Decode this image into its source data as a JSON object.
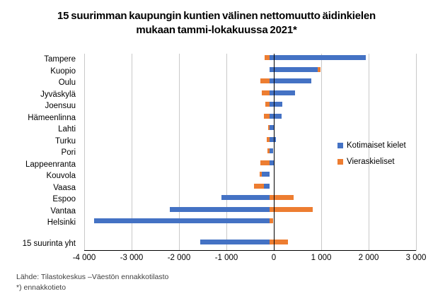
{
  "page": {
    "source_line": "Lähde: Tilastokeskus –Väestön ennakkotilasto",
    "footnote_line": "*) ennakkotieto"
  },
  "chart_data": {
    "type": "bar",
    "orientation": "horizontal",
    "stacked": true,
    "title": "15 suurimman kaupungin kuntien välinen nettomuutto äidinkielen mukaan tammi-lokakuussa 2021*",
    "categories": [
      "Tampere",
      "Kuopio",
      "Oulu",
      "Jyväskylä",
      "Joensuu",
      "Hämeenlinna",
      "Lahti",
      "Turku",
      "Pori",
      "Lappeenranta",
      "Kouvola",
      "Vaasa",
      "Espoo",
      "Vantaa",
      "Helsinki",
      "15 suurinta yht"
    ],
    "series": [
      {
        "name": "Kotimaiset kielet",
        "color": "#4472C4",
        "values": [
          2030,
          1020,
          880,
          530,
          265,
          260,
          90,
          135,
          70,
          110,
          -165,
          -125,
          -1010,
          -2100,
          -3700,
          -1460
        ]
      },
      {
        "name": "Vieraskieliset",
        "color": "#ED7D31",
        "values": [
          -110,
          60,
          -190,
          -160,
          -85,
          -115,
          -30,
          -65,
          -45,
          -200,
          -50,
          -200,
          510,
          910,
          75,
          390
        ]
      }
    ],
    "xlim": [
      -4000,
      3000
    ],
    "xticks": [
      -4000,
      -3000,
      -2000,
      -1000,
      0,
      1000,
      2000,
      3000
    ],
    "xtick_labels": [
      "-4 000",
      "-3 000",
      "-2 000",
      "-1 000",
      "0",
      "1 000",
      "2 000",
      "3 000"
    ],
    "separator_before_last_category": true,
    "grid": "vertical",
    "legend_position": "inside-right",
    "colors": {
      "gridline": "#c9c9c9",
      "axis": "#000000",
      "text": "#000000",
      "footer_text": "#3f3f3f"
    }
  }
}
